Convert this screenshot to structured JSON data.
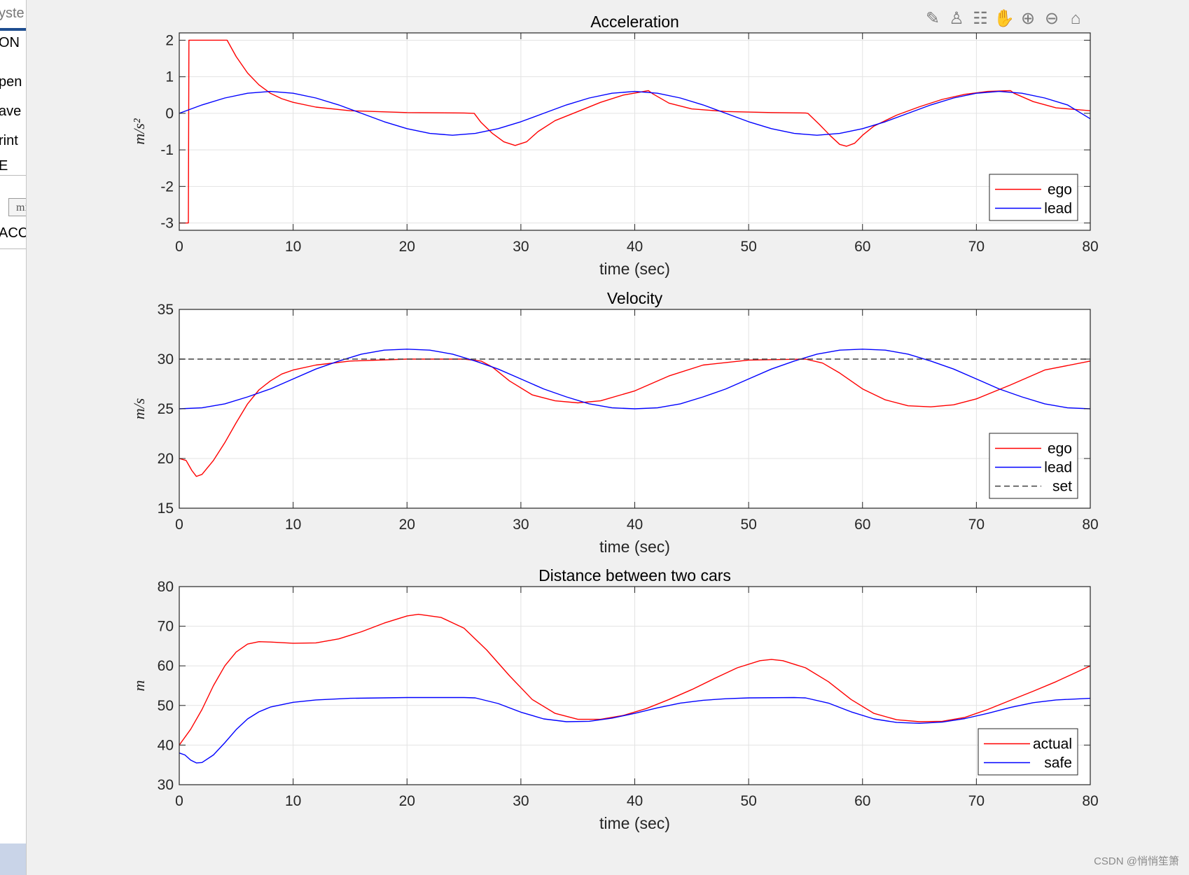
{
  "window": {
    "sidebar_fragments": [
      "yste",
      "ON",
      "pen",
      "ave",
      "rint",
      "E",
      "mi",
      "ACC"
    ],
    "toolbar_icons": [
      "brush-edit-icon",
      "data-cursor-icon",
      "legend-icon",
      "pan-hand-icon",
      "zoom-in-icon",
      "zoom-out-icon",
      "home-icon"
    ],
    "watermark": "CSDN @悄悄笙箫"
  },
  "chart_data": [
    {
      "type": "line",
      "title": "Acceleration",
      "xlabel": "time (sec)",
      "ylabel": "m/s²",
      "xlim": [
        0,
        80
      ],
      "ylim": [
        -3.2,
        2.2
      ],
      "xticks": [
        0,
        10,
        20,
        30,
        40,
        50,
        60,
        70,
        80
      ],
      "yticks": [
        -3,
        -2,
        -1,
        0,
        1,
        2
      ],
      "grid": true,
      "legend_position": "bottom-right",
      "series": [
        {
          "name": "ego",
          "color": "#ff0000",
          "dashed": false,
          "x": [
            0,
            0.8,
            0.85,
            0.9,
            1,
            2,
            3,
            4.2,
            5,
            6,
            7,
            8,
            9,
            10,
            12,
            15,
            20,
            25,
            25.9,
            26.5,
            27.5,
            28.5,
            29.5,
            30.5,
            31.5,
            33,
            35,
            37,
            39,
            41.2,
            41.6,
            43,
            45,
            48,
            52,
            55,
            55.2,
            56.2,
            57.2,
            58,
            58.6,
            59.3,
            60,
            61,
            63,
            65,
            67,
            69,
            71,
            73,
            73.3,
            75,
            77,
            80
          ],
          "y": [
            -3,
            -3,
            2,
            2,
            2,
            2,
            2,
            2,
            1.55,
            1.1,
            0.78,
            0.55,
            0.4,
            0.3,
            0.17,
            0.07,
            0.02,
            0.01,
            0.0,
            -0.25,
            -0.55,
            -0.78,
            -0.88,
            -0.78,
            -0.5,
            -0.2,
            0.05,
            0.3,
            0.5,
            0.62,
            0.53,
            0.28,
            0.12,
            0.05,
            0.02,
            0.01,
            0.0,
            -0.3,
            -0.62,
            -0.85,
            -0.9,
            -0.82,
            -0.6,
            -0.35,
            -0.05,
            0.18,
            0.38,
            0.52,
            0.6,
            0.62,
            0.55,
            0.32,
            0.15,
            0.07
          ]
        },
        {
          "name": "lead",
          "color": "#0000ff",
          "dashed": false,
          "x": [
            0,
            2,
            4,
            6,
            8,
            10,
            12,
            14,
            16,
            18,
            20,
            22,
            24,
            26,
            28,
            30,
            32,
            34,
            36,
            38,
            40,
            42,
            44,
            46,
            48,
            50,
            52,
            54,
            56,
            58,
            60,
            62,
            64,
            66,
            68,
            70,
            72,
            74,
            76,
            78,
            80
          ],
          "y": [
            0.0,
            0.23,
            0.42,
            0.55,
            0.6,
            0.55,
            0.42,
            0.23,
            0.0,
            -0.23,
            -0.42,
            -0.55,
            -0.6,
            -0.55,
            -0.42,
            -0.23,
            0.0,
            0.23,
            0.42,
            0.55,
            0.6,
            0.55,
            0.42,
            0.23,
            0.0,
            -0.23,
            -0.42,
            -0.55,
            -0.6,
            -0.55,
            -0.42,
            -0.23,
            0.0,
            0.23,
            0.42,
            0.55,
            0.6,
            0.55,
            0.42,
            0.23,
            -0.15
          ]
        }
      ]
    },
    {
      "type": "line",
      "title": "Velocity",
      "xlabel": "time (sec)",
      "ylabel": "m/s",
      "xlim": [
        0,
        80
      ],
      "ylim": [
        15,
        35
      ],
      "xticks": [
        0,
        10,
        20,
        30,
        40,
        50,
        60,
        70,
        80
      ],
      "yticks": [
        15,
        20,
        25,
        30,
        35
      ],
      "grid": true,
      "legend_position": "bottom-right",
      "series": [
        {
          "name": "ego",
          "color": "#ff0000",
          "dashed": false,
          "x": [
            0,
            0.6,
            1.1,
            1.5,
            2,
            3,
            4,
            5,
            6,
            7,
            8,
            9,
            10,
            12,
            15,
            20,
            25,
            26.5,
            27.5,
            29,
            31,
            33,
            35,
            37,
            40,
            43,
            46,
            50,
            55,
            56.5,
            58,
            60,
            62,
            64,
            66,
            68,
            70,
            73,
            76,
            80
          ],
          "y": [
            20,
            19.8,
            18.8,
            18.2,
            18.4,
            19.8,
            21.6,
            23.6,
            25.5,
            26.9,
            27.8,
            28.5,
            28.9,
            29.4,
            29.8,
            30.0,
            30.0,
            29.8,
            29.2,
            27.8,
            26.4,
            25.8,
            25.6,
            25.8,
            26.8,
            28.3,
            29.4,
            29.9,
            30.0,
            29.6,
            28.6,
            27.0,
            25.9,
            25.3,
            25.2,
            25.4,
            26.0,
            27.4,
            28.9,
            29.8
          ]
        },
        {
          "name": "lead",
          "color": "#0000ff",
          "dashed": false,
          "x": [
            0,
            2,
            4,
            6,
            8,
            10,
            12,
            14,
            16,
            18,
            20,
            22,
            24,
            26,
            28,
            30,
            32,
            34,
            36,
            38,
            40,
            42,
            44,
            46,
            48,
            50,
            52,
            54,
            56,
            58,
            60,
            62,
            64,
            66,
            68,
            70,
            72,
            74,
            76,
            78,
            80
          ],
          "y": [
            25.0,
            25.1,
            25.5,
            26.2,
            27.0,
            28.0,
            29.0,
            29.8,
            30.5,
            30.9,
            31.0,
            30.9,
            30.5,
            29.8,
            29.0,
            28.0,
            27.0,
            26.2,
            25.5,
            25.1,
            25.0,
            25.1,
            25.5,
            26.2,
            27.0,
            28.0,
            29.0,
            29.8,
            30.5,
            30.9,
            31.0,
            30.9,
            30.5,
            29.8,
            29.0,
            28.0,
            27.0,
            26.2,
            25.5,
            25.1,
            25.0
          ]
        },
        {
          "name": "set",
          "color": "#404040",
          "dashed": true,
          "x": [
            0,
            80
          ],
          "y": [
            30,
            30
          ]
        }
      ]
    },
    {
      "type": "line",
      "title": "Distance between two cars",
      "xlabel": "time (sec)",
      "ylabel": "m",
      "xlim": [
        0,
        80
      ],
      "ylim": [
        30,
        80
      ],
      "xticks": [
        0,
        10,
        20,
        30,
        40,
        50,
        60,
        70,
        80
      ],
      "yticks": [
        30,
        40,
        50,
        60,
        70,
        80
      ],
      "grid": true,
      "legend_position": "bottom-right",
      "series": [
        {
          "name": "actual",
          "color": "#ff0000",
          "dashed": false,
          "x": [
            0,
            1,
            2,
            3,
            4,
            5,
            6,
            7,
            8,
            10,
            12,
            14,
            16,
            18,
            20,
            21,
            23,
            25,
            27,
            29,
            31,
            33,
            35,
            37,
            39,
            41,
            43,
            45,
            47,
            49,
            51,
            52,
            53,
            55,
            57,
            59,
            61,
            63,
            65,
            67,
            69,
            71,
            73,
            75,
            77,
            80
          ],
          "y": [
            40,
            44,
            49,
            55,
            60,
            63.5,
            65.5,
            66.1,
            66.0,
            65.7,
            65.8,
            66.8,
            68.6,
            70.8,
            72.6,
            73.0,
            72.2,
            69.5,
            64,
            57.5,
            51.5,
            48.0,
            46.5,
            46.5,
            47.5,
            49.2,
            51.5,
            54.0,
            56.8,
            59.5,
            61.3,
            61.6,
            61.3,
            59.5,
            56.0,
            51.5,
            48.0,
            46.4,
            45.9,
            46.0,
            47.0,
            49.0,
            51.3,
            53.6,
            56.0,
            60.0
          ]
        },
        {
          "name": "safe",
          "color": "#0000ff",
          "dashed": false,
          "x": [
            0,
            0.5,
            1,
            1.5,
            2,
            3,
            4,
            5,
            6,
            7,
            8,
            10,
            12,
            15,
            20,
            25,
            26,
            28,
            30,
            32,
            34,
            36,
            38,
            40,
            42,
            44,
            46,
            48,
            50,
            54,
            55,
            57,
            59,
            61,
            63,
            65,
            67,
            69,
            71,
            73,
            75,
            77,
            80
          ],
          "y": [
            38,
            37.5,
            36.2,
            35.5,
            35.6,
            37.5,
            40.6,
            43.9,
            46.6,
            48.4,
            49.6,
            50.8,
            51.4,
            51.8,
            52.0,
            52.0,
            51.9,
            50.5,
            48.3,
            46.6,
            45.9,
            46.0,
            46.8,
            48.0,
            49.4,
            50.6,
            51.3,
            51.7,
            51.9,
            52.0,
            51.9,
            50.6,
            48.4,
            46.6,
            45.7,
            45.5,
            45.8,
            46.7,
            48.0,
            49.5,
            50.7,
            51.4,
            51.8
          ]
        }
      ]
    }
  ]
}
